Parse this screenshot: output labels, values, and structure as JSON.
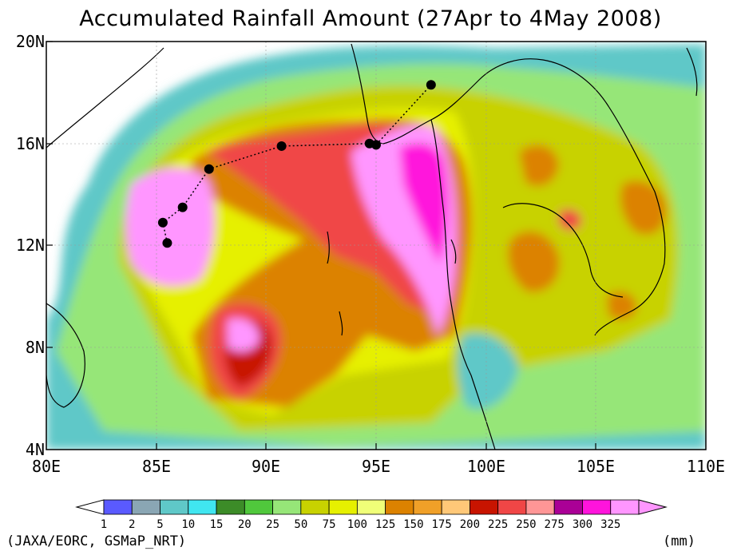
{
  "title": "Accumulated Rainfall Amount (27Apr to 4May 2008)",
  "lat_ticks": [
    "20N",
    "16N",
    "12N",
    "8N",
    "4N"
  ],
  "lon_ticks": [
    "80E",
    "85E",
    "90E",
    "95E",
    "100E",
    "105E",
    "110E"
  ],
  "extent": {
    "lon_min": 80,
    "lon_max": 110,
    "lat_min": 4,
    "lat_max": 20
  },
  "colorbar": {
    "labels": [
      "1",
      "2",
      "5",
      "10",
      "15",
      "20",
      "25",
      "50",
      "75",
      "100",
      "125",
      "150",
      "175",
      "200",
      "225",
      "250",
      "275",
      "300",
      "325"
    ],
    "colors": [
      "#5a5aff",
      "#8aa6b4",
      "#5fc8c8",
      "#40e6f0",
      "#3c8c28",
      "#50c83c",
      "#96e678",
      "#c8d200",
      "#e6f000",
      "#f0ff78",
      "#dc8200",
      "#f0a028",
      "#ffc878",
      "#c81400",
      "#f04646",
      "#ff9696",
      "#aa0096",
      "#ff14dc",
      "#ff96ff"
    ]
  },
  "storm_track": [
    {
      "lon": 85.5,
      "lat": 12.1
    },
    {
      "lon": 85.3,
      "lat": 12.9
    },
    {
      "lon": 86.2,
      "lat": 13.5
    },
    {
      "lon": 87.4,
      "lat": 15.0
    },
    {
      "lon": 90.7,
      "lat": 15.9
    },
    {
      "lon": 94.7,
      "lat": 16.0
    },
    {
      "lon": 95.0,
      "lat": 15.95
    },
    {
      "lon": 97.5,
      "lat": 18.3
    }
  ],
  "credit": "(JAXA/EORC, GSMaP_NRT)",
  "units": "(mm)"
}
